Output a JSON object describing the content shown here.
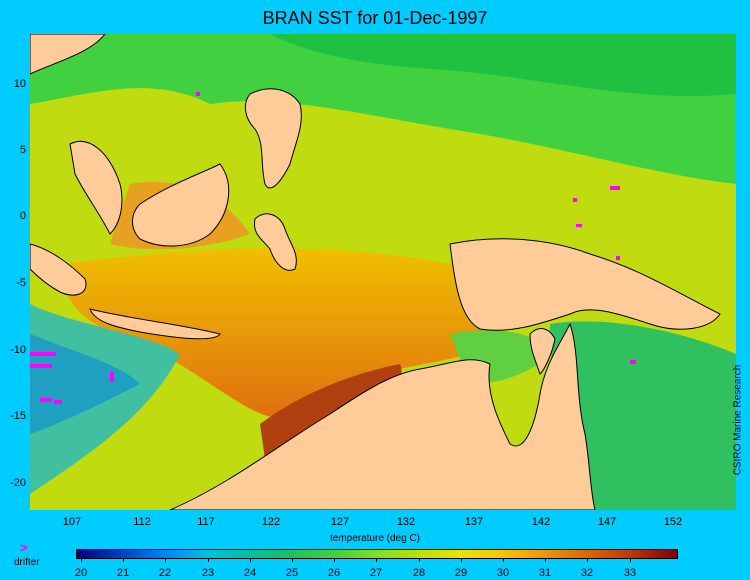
{
  "title": "BRAN SST for 01-Dec-1997",
  "y_ticks": [
    "10",
    "5",
    "0",
    "-5",
    "-10",
    "-15",
    "-20"
  ],
  "x_ticks": [
    "107",
    "112",
    "117",
    "122",
    "127",
    "132",
    "137",
    "142",
    "147",
    "152"
  ],
  "colorbar": {
    "label": "temperature (deg C)",
    "ticks": [
      "20",
      "21",
      "22",
      "23",
      "24",
      "25",
      "26",
      "27",
      "28",
      "29",
      "30",
      "31",
      "32",
      "33"
    ]
  },
  "legend": {
    "symbol": ">",
    "label": "drifter"
  },
  "credit": "CSIRO Marine Research",
  "colors": {
    "background": "#00ccff",
    "land": "#ffcc99",
    "drifter": "#ff00ff",
    "coastline": "#000000"
  }
}
